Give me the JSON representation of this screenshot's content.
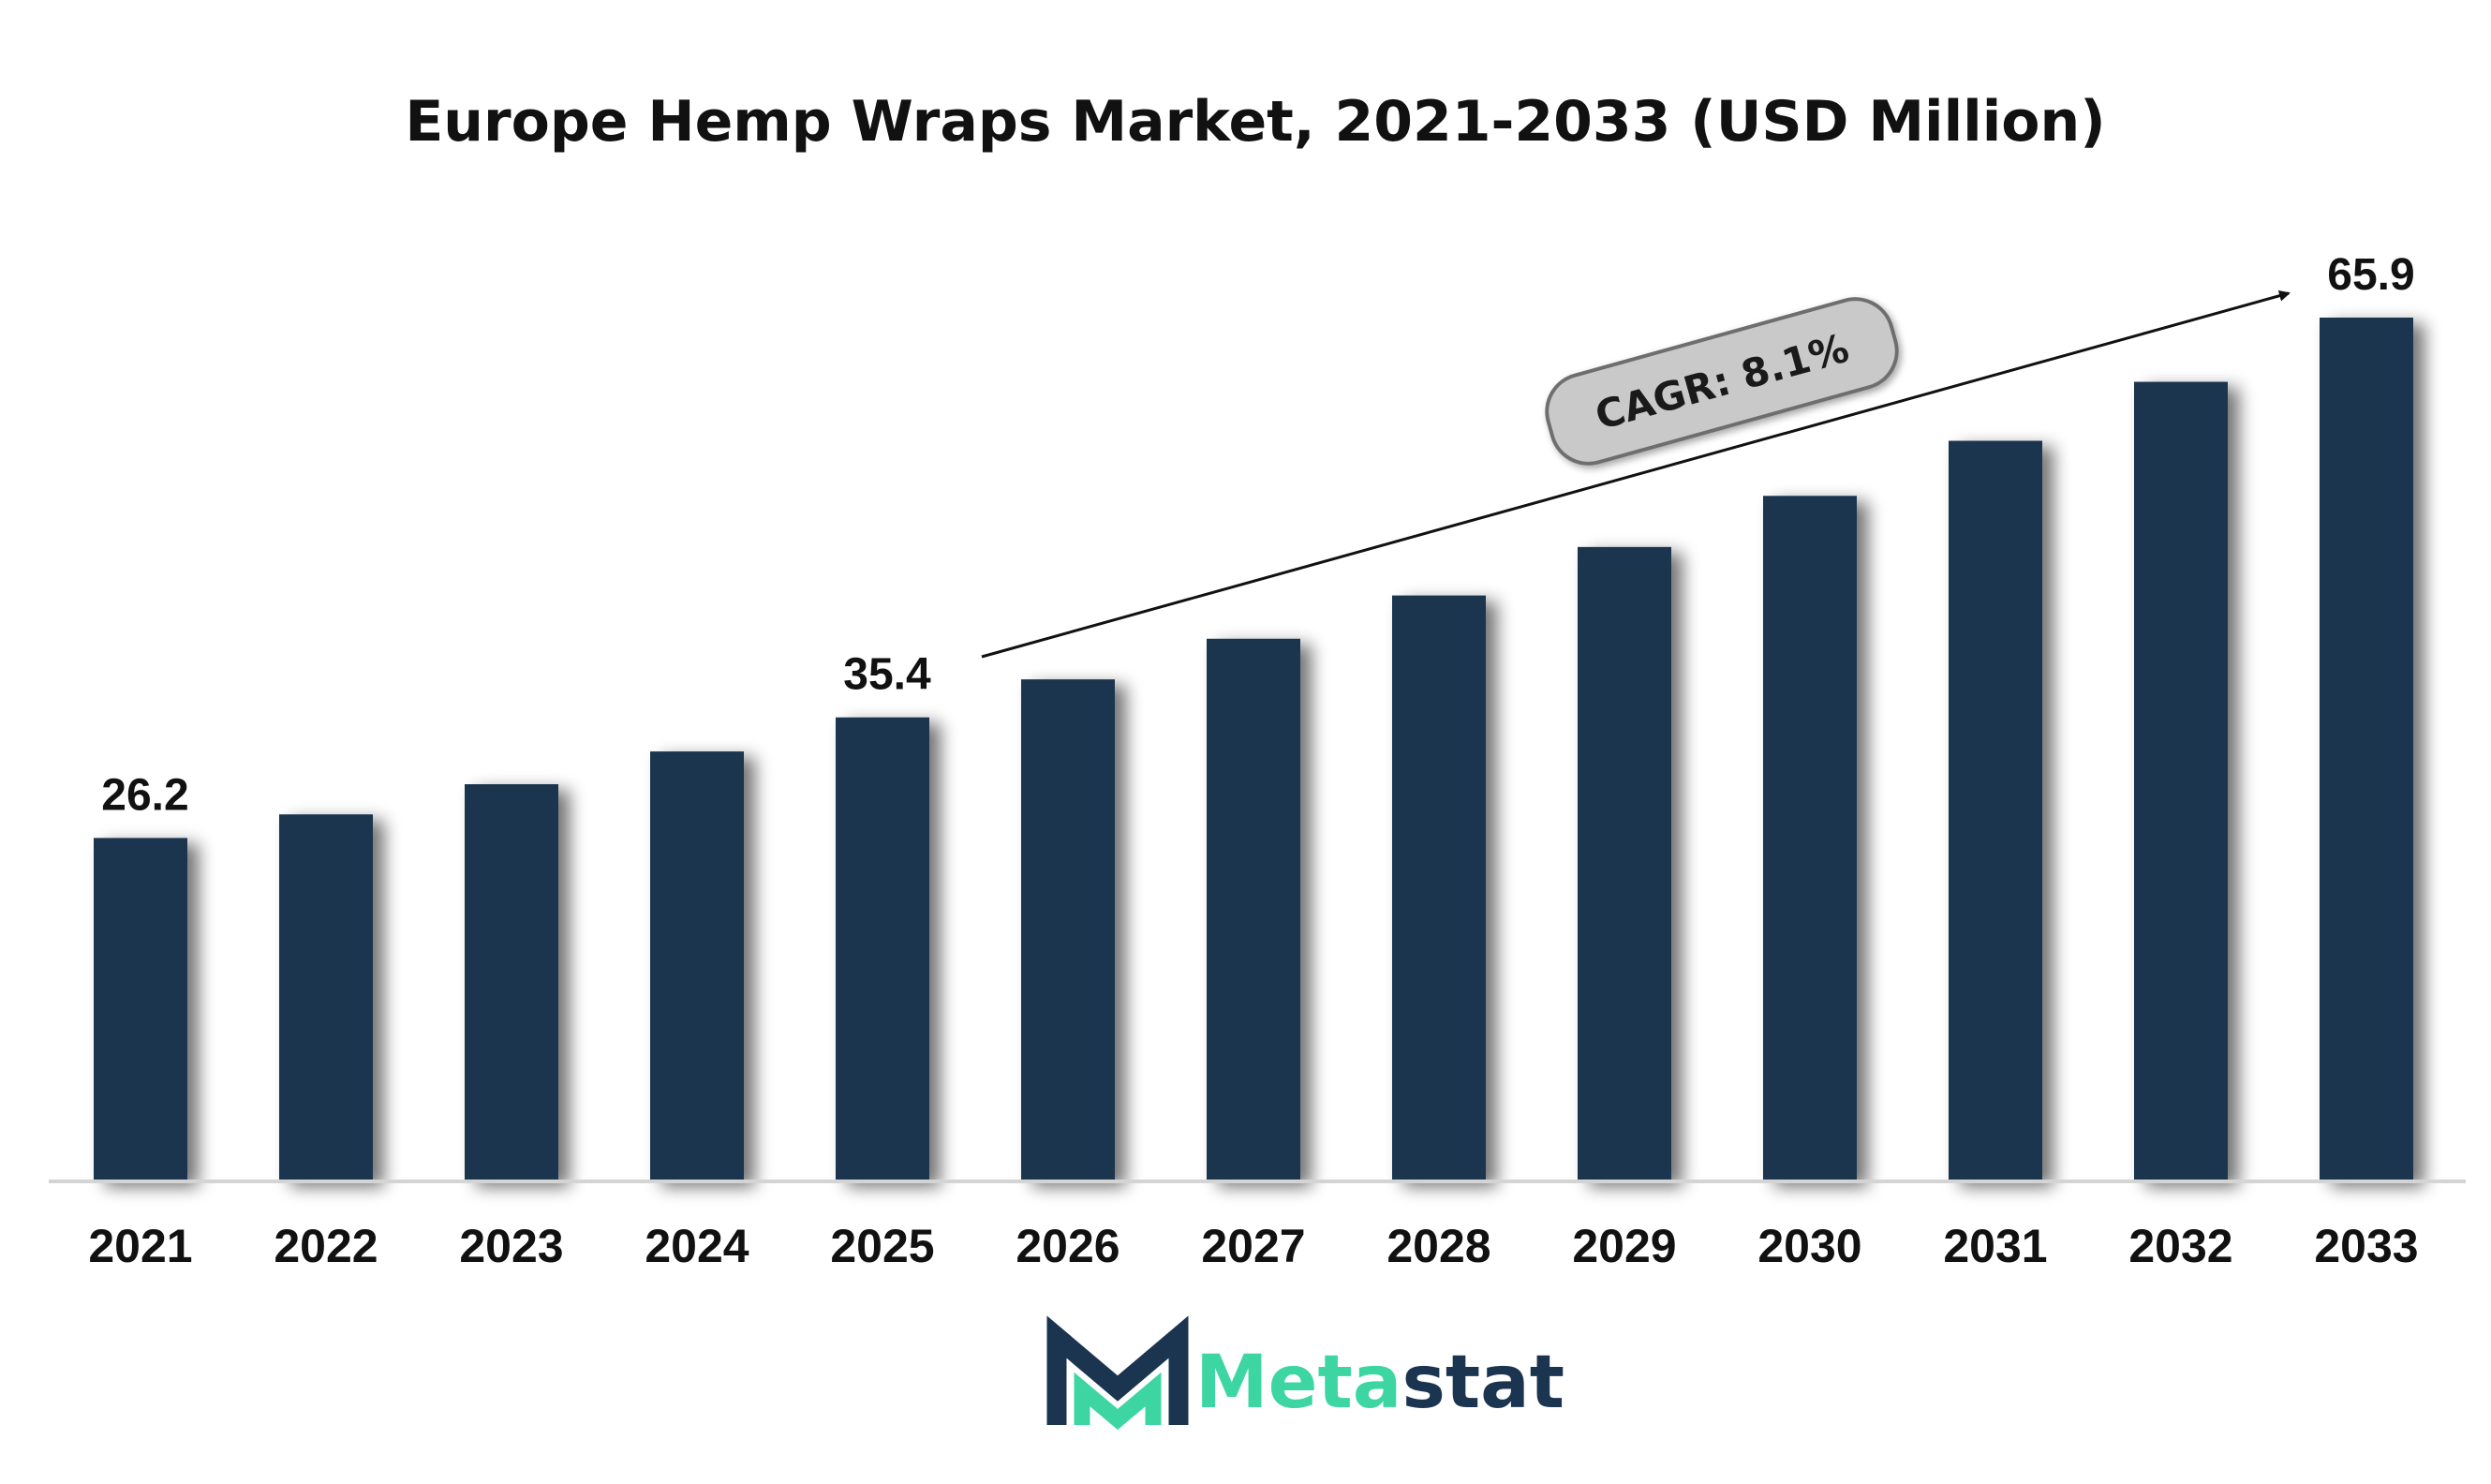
{
  "chart_data": {
    "type": "bar",
    "title": "Europe Hemp Wraps Market, 2021-2033 (USD Million)",
    "xlabel": "",
    "ylabel": "",
    "categories": [
      "2021",
      "2022",
      "2023",
      "2024",
      "2025",
      "2026",
      "2027",
      "2028",
      "2029",
      "2030",
      "2031",
      "2032",
      "2033"
    ],
    "values": [
      26.2,
      28.0,
      30.3,
      32.8,
      35.4,
      38.3,
      41.4,
      44.7,
      48.4,
      52.3,
      56.5,
      61.0,
      65.9
    ],
    "data_labels": [
      {
        "category": "2021",
        "text": "26.2"
      },
      {
        "category": "2025",
        "text": "35.4"
      },
      {
        "category": "2033",
        "text": "65.9"
      }
    ],
    "annotation": "CAGR: 8.1%",
    "ylim": [
      0,
      72
    ],
    "grid": false,
    "legend": "none",
    "bar_color": "#1b3450"
  },
  "brand": {
    "name_part1": "Meta",
    "name_part2": "stat",
    "color_part1": "#3dd6a3",
    "color_part2": "#1b3450",
    "logo_icon": "metastat-m-logo-icon"
  }
}
